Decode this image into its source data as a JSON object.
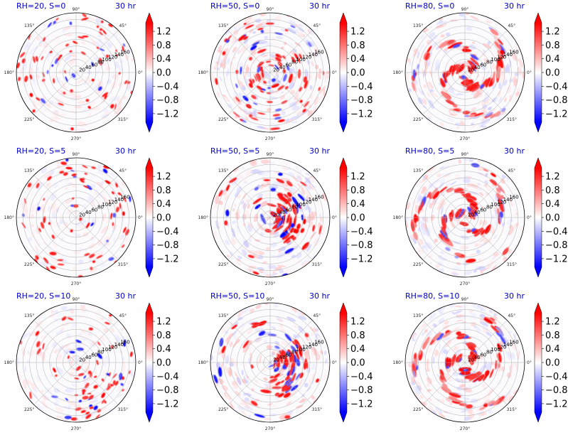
{
  "chart_data": {
    "type": "polar-field",
    "panels": [
      {
        "id": "p-rh20-s0",
        "title": "RH=20, S=0",
        "time": "30 hr",
        "rh": 20,
        "s": 0,
        "pattern": "scattered"
      },
      {
        "id": "p-rh50-s0",
        "title": "RH=50, S=0",
        "time": "30 hr",
        "rh": 50,
        "s": 0,
        "pattern": "bands"
      },
      {
        "id": "p-rh80-s0",
        "title": "RH=80, S=0",
        "time": "30 hr",
        "rh": 80,
        "s": 0,
        "pattern": "spiral"
      },
      {
        "id": "p-rh20-s5",
        "title": "RH=20, S=5",
        "time": "30 hr",
        "rh": 20,
        "s": 5,
        "pattern": "scattered"
      },
      {
        "id": "p-rh50-s5",
        "title": "RH=50, S=5",
        "time": "30 hr",
        "rh": 50,
        "s": 5,
        "pattern": "sheared"
      },
      {
        "id": "p-rh80-s5",
        "title": "RH=80, S=5",
        "time": "30 hr",
        "rh": 80,
        "s": 5,
        "pattern": "spiral"
      },
      {
        "id": "p-rh20-s10",
        "title": "RH=20, S=10",
        "time": "30 hr",
        "rh": 20,
        "s": 10,
        "pattern": "scattered"
      },
      {
        "id": "p-rh50-s10",
        "title": "RH=50, S=10",
        "time": "30 hr",
        "rh": 50,
        "s": 10,
        "pattern": "sheared"
      },
      {
        "id": "p-rh80-s10",
        "title": "RH=80, S=10",
        "time": "30 hr",
        "rh": 80,
        "s": 10,
        "pattern": "spiral"
      }
    ],
    "angular_ticks": [
      "0°",
      "45°",
      "90°",
      "135°",
      "180°",
      "225°",
      "270°",
      "315°"
    ],
    "radial_ticks": [
      "20",
      "40",
      "60",
      "80",
      "100",
      "120",
      "140",
      "160"
    ],
    "radial_max": 180,
    "colorbar": {
      "ticks": [
        "1.2",
        "0.8",
        "0.4",
        "0.0",
        "−0.4",
        "−0.8",
        "−1.2"
      ],
      "tick_values": [
        1.2,
        0.8,
        0.4,
        0.0,
        -0.4,
        -0.8,
        -1.2
      ],
      "vmin": -1.45,
      "vmax": 1.45,
      "extend": "both",
      "colormap": "bwr"
    },
    "colors": {
      "positive": "#ff0000",
      "negative": "#0000ff",
      "neutral": "#ffffff",
      "title": "#0000cc"
    }
  }
}
